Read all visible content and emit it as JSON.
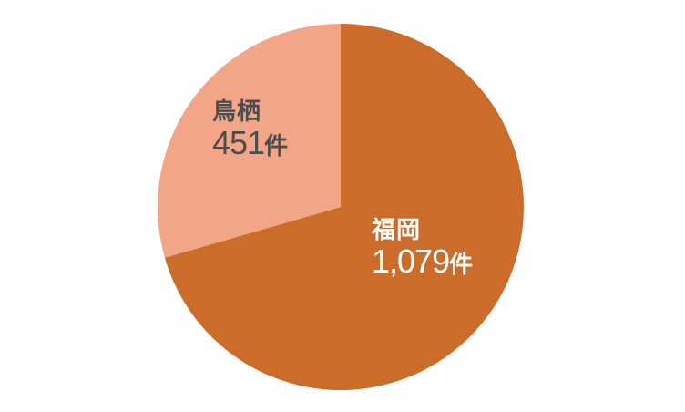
{
  "page": {
    "background": "#FFFFFF"
  },
  "chart_data": {
    "type": "pie",
    "categories": [
      "福岡",
      "鳥栖"
    ],
    "values": [
      1079,
      451
    ],
    "colors": [
      "#CB6C2B",
      "#F2A687"
    ],
    "start_angle_deg": 0,
    "direction": "clockwise",
    "legend": "none",
    "labels_position": "inside",
    "segments": [
      {
        "label": "福岡",
        "value": 1079,
        "value_text": "1,079",
        "unit": "件",
        "color": "#CB6C2B",
        "label_color": "#FFFFFF"
      },
      {
        "label": "鳥栖",
        "value": 451,
        "value_text": "451",
        "unit": "件",
        "color": "#F2A687",
        "label_color": "#4D4D4D"
      }
    ]
  }
}
